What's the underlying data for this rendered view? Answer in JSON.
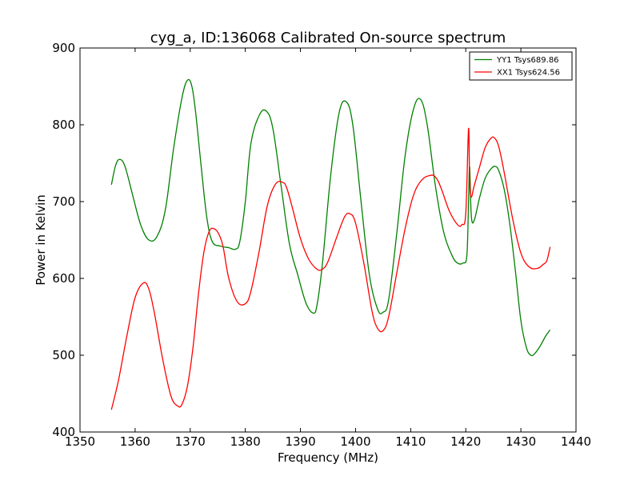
{
  "chart_data": {
    "type": "line",
    "title": "cyg_a, ID:136068 Calibrated On-source spectrum",
    "xlabel": "Frequency (MHz)",
    "ylabel": "Power in Kelvin",
    "xlim": [
      1350,
      1440
    ],
    "ylim": [
      400,
      900
    ],
    "xticks": [
      1350,
      1360,
      1370,
      1380,
      1390,
      1400,
      1410,
      1420,
      1430,
      1440
    ],
    "yticks": [
      400,
      500,
      600,
      700,
      800,
      900
    ],
    "grid": false,
    "legend_position": "top-right",
    "series": [
      {
        "name": "YY1 Tsys689.86",
        "color": "#008000",
        "x": [
          1355.7,
          1356.5,
          1357.3,
          1358.2,
          1359.5,
          1361.0,
          1362.5,
          1364.0,
          1365.5,
          1367.0,
          1368.5,
          1369.5,
          1370.3,
          1371.0,
          1372.0,
          1373.0,
          1374.0,
          1375.5,
          1377.0,
          1378.2,
          1379.0,
          1380.0,
          1381.0,
          1382.5,
          1383.8,
          1385.0,
          1386.5,
          1388.0,
          1389.5,
          1391.0,
          1392.3,
          1393.0,
          1394.0,
          1395.5,
          1397.0,
          1398.3,
          1399.5,
          1401.0,
          1402.5,
          1404.0,
          1405.0,
          1406.0,
          1407.5,
          1409.0,
          1410.5,
          1411.8,
          1413.0,
          1414.5,
          1416.0,
          1417.5,
          1418.5,
          1419.5,
          1420.2,
          1420.5,
          1420.7,
          1421.0,
          1421.5,
          1422.5,
          1423.5,
          1424.5,
          1425.3,
          1426.0,
          1427.0,
          1428.0,
          1429.0,
          1430.0,
          1431.0,
          1431.8,
          1432.5,
          1433.5,
          1434.5,
          1435.3
        ],
        "values": [
          722,
          748,
          755,
          745,
          710,
          670,
          650,
          655,
          690,
          770,
          835,
          858,
          850,
          815,
          745,
          680,
          648,
          642,
          640,
          638,
          648,
          700,
          775,
          812,
          818,
          795,
          720,
          645,
          605,
          568,
          555,
          565,
          620,
          735,
          815,
          830,
          800,
          700,
          605,
          560,
          556,
          572,
          660,
          760,
          820,
          833,
          800,
          720,
          660,
          630,
          620,
          620,
          630,
          700,
          745,
          682,
          675,
          705,
          730,
          742,
          746,
          740,
          715,
          670,
          610,
          545,
          510,
          500,
          502,
          512,
          525,
          533
        ]
      },
      {
        "name": "XX1 Tsys624.56",
        "color": "#ff0000",
        "x": [
          1355.7,
          1357.0,
          1358.5,
          1360.0,
          1361.5,
          1362.5,
          1363.5,
          1365.0,
          1366.5,
          1367.7,
          1368.5,
          1369.5,
          1370.5,
          1371.5,
          1372.5,
          1373.5,
          1374.5,
          1375.3,
          1376.0,
          1377.0,
          1378.5,
          1380.0,
          1381.0,
          1382.5,
          1384.0,
          1385.5,
          1386.8,
          1387.5,
          1388.5,
          1390.0,
          1391.5,
          1393.0,
          1394.0,
          1395.0,
          1396.5,
          1398.0,
          1399.0,
          1400.0,
          1401.5,
          1403.0,
          1404.0,
          1405.0,
          1406.0,
          1407.5,
          1409.0,
          1410.5,
          1412.0,
          1413.5,
          1414.5,
          1415.5,
          1417.0,
          1418.5,
          1419.3,
          1420.0,
          1420.5,
          1420.7,
          1421.0,
          1421.5,
          1422.5,
          1423.5,
          1424.5,
          1425.2,
          1426.0,
          1427.0,
          1428.5,
          1430.0,
          1431.5,
          1433.0,
          1434.0,
          1434.7,
          1435.3
        ],
        "values": [
          429,
          468,
          525,
          575,
          594,
          586,
          555,
          495,
          447,
          434,
          436,
          460,
          510,
          580,
          635,
          662,
          664,
          656,
          640,
          600,
          570,
          567,
          583,
          635,
          695,
          723,
          725,
          718,
          693,
          652,
          625,
          612,
          612,
          622,
          652,
          680,
          684,
          672,
          620,
          557,
          535,
          532,
          550,
          608,
          665,
          708,
          728,
          734,
          732,
          718,
          688,
          670,
          670,
          685,
          795,
          725,
          706,
          720,
          745,
          770,
          782,
          783,
          771,
          737,
          678,
          633,
          615,
          613,
          618,
          623,
          641
        ]
      }
    ]
  }
}
